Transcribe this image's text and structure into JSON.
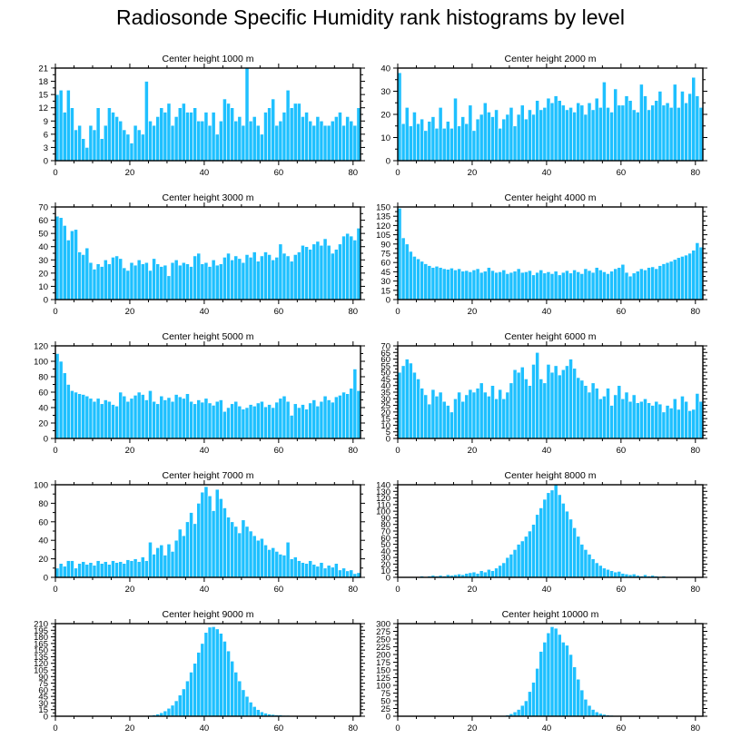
{
  "title": "Radiosonde Specific Humidity rank histograms by level",
  "colors": {
    "bar": "#1ec0ff",
    "bar_edge": "#ffffff",
    "axis": "#000000"
  },
  "chart_data": [
    {
      "type": "bar",
      "title": "Center height 1000 m",
      "xlim": [
        0,
        82
      ],
      "ylim": [
        0,
        21
      ],
      "xticks": [
        0,
        20,
        40,
        60,
        80
      ],
      "yticks": [
        0,
        3,
        6,
        9,
        12,
        15,
        18,
        21
      ],
      "values": [
        15,
        16,
        11,
        16,
        12,
        7,
        8,
        5,
        3,
        8,
        7,
        12,
        5,
        8,
        12,
        11,
        10,
        9,
        7,
        6,
        4,
        8,
        7,
        6,
        18,
        9,
        8,
        10,
        12,
        11,
        13,
        8,
        10,
        12,
        13,
        11,
        11,
        12,
        9,
        9,
        11,
        8,
        11,
        6,
        9,
        14,
        13,
        12,
        9,
        10,
        8,
        21,
        9,
        10,
        8,
        6,
        11,
        12,
        14,
        8,
        9,
        11,
        16,
        12,
        13,
        13,
        10,
        11,
        9,
        8,
        10,
        9,
        8,
        8,
        9,
        10,
        11,
        8,
        10,
        9,
        8,
        12
      ],
      "xlabel": "",
      "ylabel": ""
    },
    {
      "type": "bar",
      "title": "Center height 2000 m",
      "xlim": [
        0,
        82
      ],
      "ylim": [
        0,
        40
      ],
      "xticks": [
        0,
        20,
        40,
        60,
        80
      ],
      "yticks": [
        0,
        10,
        20,
        30,
        40
      ],
      "values": [
        38,
        16,
        23,
        15,
        21,
        16,
        18,
        13,
        17,
        19,
        14,
        23,
        14,
        17,
        14,
        27,
        15,
        19,
        16,
        24,
        13,
        18,
        20,
        25,
        21,
        19,
        22,
        14,
        18,
        20,
        23,
        15,
        20,
        24,
        18,
        22,
        20,
        26,
        22,
        23,
        27,
        25,
        28,
        26,
        24,
        22,
        23,
        21,
        25,
        24,
        20,
        25,
        22,
        27,
        23,
        34,
        23,
        21,
        31,
        24,
        24,
        28,
        26,
        22,
        21,
        33,
        28,
        22,
        24,
        26,
        30,
        24,
        25,
        23,
        33,
        23,
        30,
        25,
        29,
        36,
        28,
        23
      ],
      "xlabel": "",
      "ylabel": ""
    },
    {
      "type": "bar",
      "title": "Center height 3000 m",
      "xlim": [
        0,
        82
      ],
      "ylim": [
        0,
        70
      ],
      "xticks": [
        0,
        20,
        40,
        60,
        80
      ],
      "yticks": [
        0,
        10,
        20,
        30,
        40,
        50,
        60,
        70
      ],
      "values": [
        63,
        62,
        56,
        45,
        52,
        53,
        36,
        34,
        39,
        28,
        23,
        27,
        25,
        30,
        27,
        32,
        33,
        31,
        24,
        22,
        28,
        26,
        30,
        27,
        28,
        22,
        31,
        27,
        25,
        26,
        18,
        28,
        30,
        26,
        28,
        27,
        25,
        33,
        35,
        27,
        28,
        25,
        30,
        26,
        27,
        32,
        35,
        30,
        33,
        31,
        28,
        34,
        32,
        36,
        29,
        33,
        36,
        34,
        30,
        32,
        42,
        35,
        33,
        29,
        34,
        36,
        41,
        40,
        38,
        42,
        44,
        41,
        46,
        41,
        35,
        38,
        42,
        48,
        50,
        48,
        45,
        54
      ],
      "xlabel": "",
      "ylabel": ""
    },
    {
      "type": "bar",
      "title": "Center height 4000 m",
      "xlim": [
        0,
        82
      ],
      "ylim": [
        0,
        150
      ],
      "xticks": [
        0,
        20,
        40,
        60,
        80
      ],
      "yticks": [
        0,
        15,
        30,
        45,
        60,
        75,
        90,
        105,
        120,
        135,
        150
      ],
      "values": [
        148,
        100,
        90,
        78,
        70,
        66,
        62,
        58,
        55,
        52,
        54,
        52,
        50,
        49,
        51,
        48,
        50,
        46,
        47,
        45,
        48,
        50,
        44,
        46,
        52,
        47,
        44,
        45,
        48,
        42,
        44,
        46,
        50,
        44,
        45,
        47,
        40,
        44,
        48,
        43,
        45,
        42,
        46,
        40,
        44,
        47,
        43,
        48,
        45,
        42,
        50,
        47,
        44,
        52,
        48,
        45,
        42,
        46,
        50,
        52,
        57,
        44,
        38,
        43,
        46,
        50,
        48,
        52,
        53,
        50,
        55,
        58,
        60,
        62,
        65,
        68,
        70,
        72,
        75,
        80,
        92,
        85
      ],
      "xlabel": "",
      "ylabel": ""
    },
    {
      "type": "bar",
      "title": "Center height 5000 m",
      "xlim": [
        0,
        82
      ],
      "ylim": [
        0,
        120
      ],
      "xticks": [
        0,
        20,
        40,
        60,
        80
      ],
      "yticks": [
        0,
        20,
        40,
        60,
        80,
        100,
        120
      ],
      "values": [
        110,
        100,
        85,
        70,
        62,
        60,
        58,
        57,
        55,
        52,
        48,
        52,
        45,
        50,
        48,
        44,
        42,
        60,
        55,
        48,
        52,
        56,
        60,
        57,
        50,
        62,
        48,
        45,
        55,
        50,
        53,
        48,
        57,
        54,
        52,
        58,
        48,
        45,
        50,
        47,
        52,
        46,
        43,
        48,
        50,
        35,
        40,
        45,
        48,
        42,
        38,
        40,
        44,
        42,
        46,
        48,
        41,
        44,
        40,
        47,
        52,
        55,
        48,
        30,
        45,
        40,
        44,
        38,
        46,
        50,
        42,
        48,
        55,
        50,
        47,
        54,
        56,
        60,
        58,
        65,
        90,
        62
      ],
      "xlabel": "",
      "ylabel": ""
    },
    {
      "type": "bar",
      "title": "Center height 6000 m",
      "xlim": [
        0,
        82
      ],
      "ylim": [
        0,
        70
      ],
      "xticks": [
        0,
        20,
        40,
        60,
        80
      ],
      "yticks": [
        0,
        5,
        10,
        15,
        20,
        25,
        30,
        35,
        40,
        45,
        50,
        55,
        60,
        65,
        70
      ],
      "values": [
        50,
        55,
        60,
        57,
        50,
        45,
        38,
        33,
        26,
        37,
        32,
        35,
        28,
        25,
        20,
        30,
        35,
        28,
        33,
        37,
        35,
        38,
        42,
        35,
        32,
        40,
        30,
        37,
        30,
        35,
        42,
        52,
        50,
        54,
        45,
        40,
        56,
        65,
        45,
        42,
        56,
        50,
        55,
        48,
        52,
        55,
        60,
        53,
        46,
        44,
        40,
        35,
        42,
        38,
        30,
        32,
        38,
        25,
        33,
        40,
        30,
        35,
        28,
        33,
        27,
        28,
        30,
        27,
        25,
        28,
        26,
        20,
        25,
        23,
        30,
        22,
        32,
        28,
        21,
        22,
        34,
        28
      ],
      "xlabel": "",
      "ylabel": ""
    },
    {
      "type": "bar",
      "title": "Center height 7000 m",
      "xlim": [
        0,
        82
      ],
      "ylim": [
        0,
        100
      ],
      "xticks": [
        0,
        20,
        40,
        60,
        80
      ],
      "yticks": [
        0,
        20,
        40,
        60,
        80,
        100
      ],
      "values": [
        10,
        15,
        12,
        18,
        18,
        10,
        15,
        17,
        14,
        16,
        13,
        18,
        15,
        17,
        14,
        18,
        16,
        17,
        15,
        19,
        18,
        20,
        17,
        22,
        18,
        38,
        25,
        32,
        35,
        24,
        36,
        28,
        40,
        52,
        45,
        60,
        70,
        58,
        80,
        92,
        98,
        88,
        72,
        95,
        85,
        75,
        65,
        60,
        55,
        48,
        62,
        55,
        50,
        45,
        40,
        42,
        35,
        30,
        32,
        28,
        25,
        24,
        38,
        20,
        22,
        18,
        16,
        15,
        18,
        14,
        12,
        16,
        10,
        13,
        11,
        15,
        8,
        10,
        7,
        8,
        4,
        5
      ],
      "xlabel": "",
      "ylabel": ""
    },
    {
      "type": "bar",
      "title": "Center height 8000 m",
      "xlim": [
        0,
        82
      ],
      "ylim": [
        0,
        140
      ],
      "xticks": [
        0,
        20,
        40,
        60,
        80
      ],
      "yticks": [
        0,
        10,
        20,
        30,
        40,
        50,
        60,
        70,
        80,
        90,
        100,
        110,
        120,
        130,
        140
      ],
      "values": [
        0,
        0,
        1,
        0,
        1,
        0,
        2,
        1,
        2,
        3,
        2,
        3,
        2,
        4,
        3,
        4,
        5,
        4,
        6,
        7,
        8,
        6,
        10,
        8,
        12,
        10,
        14,
        18,
        22,
        30,
        35,
        42,
        50,
        55,
        62,
        70,
        80,
        95,
        105,
        118,
        128,
        132,
        140,
        125,
        112,
        100,
        88,
        75,
        62,
        50,
        42,
        35,
        28,
        22,
        18,
        14,
        12,
        10,
        8,
        9,
        6,
        5,
        4,
        5,
        3,
        2,
        4,
        2,
        3,
        2,
        1,
        2,
        1,
        1,
        0,
        1,
        0,
        0,
        0,
        0,
        0,
        0
      ],
      "xlabel": "",
      "ylabel": ""
    },
    {
      "type": "bar",
      "title": "Center height 9000 m",
      "xlim": [
        0,
        82
      ],
      "ylim": [
        0,
        210
      ],
      "xticks": [
        0,
        20,
        40,
        60,
        80
      ],
      "yticks": [
        0,
        15,
        30,
        45,
        60,
        75,
        90,
        105,
        120,
        135,
        150,
        165,
        180,
        195,
        210
      ],
      "values": [
        0,
        0,
        0,
        0,
        0,
        0,
        0,
        0,
        0,
        0,
        0,
        0,
        0,
        0,
        0,
        0,
        0,
        0,
        0,
        0,
        0,
        0,
        0,
        1,
        1,
        2,
        3,
        5,
        8,
        12,
        18,
        25,
        35,
        48,
        62,
        80,
        100,
        120,
        145,
        165,
        190,
        202,
        203,
        198,
        188,
        170,
        148,
        125,
        100,
        80,
        60,
        45,
        32,
        22,
        15,
        10,
        7,
        5,
        4,
        3,
        3,
        2,
        2,
        1,
        1,
        1,
        1,
        1,
        0,
        0,
        1,
        0,
        0,
        0,
        0,
        0,
        0,
        0,
        0,
        0,
        0,
        0
      ],
      "xlabel": "",
      "ylabel": ""
    },
    {
      "type": "bar",
      "title": "Center height 10000 m",
      "xlim": [
        0,
        82
      ],
      "ylim": [
        0,
        300
      ],
      "xticks": [
        0,
        20,
        40,
        60,
        80
      ],
      "yticks": [
        0,
        25,
        50,
        75,
        100,
        125,
        150,
        175,
        200,
        225,
        250,
        275,
        300
      ],
      "values": [
        0,
        0,
        0,
        0,
        0,
        0,
        0,
        0,
        0,
        0,
        0,
        0,
        0,
        0,
        0,
        0,
        0,
        0,
        0,
        0,
        0,
        0,
        0,
        0,
        0,
        0,
        0,
        1,
        2,
        4,
        8,
        14,
        22,
        35,
        50,
        80,
        110,
        155,
        210,
        240,
        270,
        290,
        285,
        265,
        240,
        230,
        200,
        160,
        120,
        85,
        55,
        35,
        22,
        14,
        9,
        6,
        4,
        3,
        2,
        1,
        1,
        1,
        1,
        0,
        0,
        1,
        0,
        0,
        0,
        0,
        0,
        0,
        0,
        0,
        0,
        0,
        0,
        0,
        0,
        0,
        0,
        0
      ],
      "xlabel": "",
      "ylabel": ""
    }
  ]
}
